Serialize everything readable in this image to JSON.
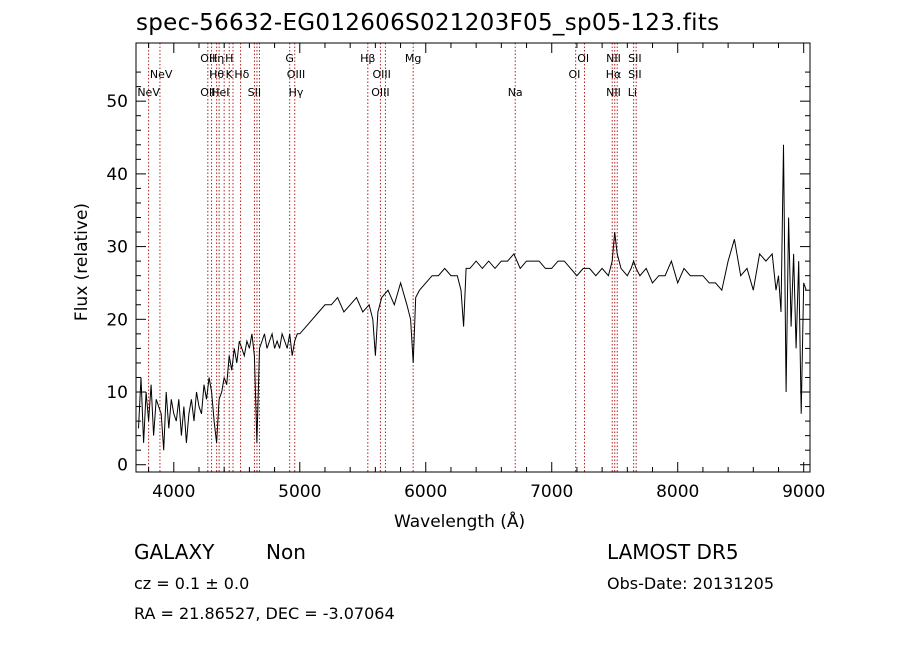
{
  "chart_data": {
    "type": "line",
    "title": "spec-56632-EG012606S021203F05_sp05-123.fits",
    "xlabel": "Wavelength (Å)",
    "ylabel": "Flux (relative)",
    "xlim": [
      3700,
      9050
    ],
    "ylim": [
      -1,
      58
    ],
    "xticks": [
      4000,
      5000,
      6000,
      7000,
      8000,
      9000
    ],
    "yticks": [
      0,
      10,
      20,
      30,
      40,
      50
    ],
    "grid": false,
    "line_color": "#000000",
    "marker_color": "#b22222",
    "series": [
      {
        "x": [
          3720,
          3740,
          3760,
          3780,
          3800,
          3820,
          3840,
          3860,
          3880,
          3900,
          3920,
          3940,
          3960,
          3980,
          4000,
          4020,
          4040,
          4060,
          4080,
          4100,
          4120,
          4140,
          4160,
          4180,
          4200,
          4220,
          4240,
          4260,
          4280,
          4300,
          4320,
          4340,
          4360,
          4380,
          4400,
          4420,
          4440,
          4460,
          4480,
          4500,
          4520,
          4540,
          4560,
          4580,
          4600,
          4620,
          4640,
          4660,
          4680,
          4700,
          4720,
          4740,
          4760,
          4780,
          4800,
          4820,
          4840,
          4860,
          4880,
          4900,
          4920,
          4940,
          4960,
          4980,
          5000,
          5050,
          5100,
          5150,
          5200,
          5250,
          5300,
          5350,
          5400,
          5450,
          5500,
          5550,
          5580,
          5600,
          5620,
          5650,
          5700,
          5750,
          5800,
          5850,
          5880,
          5900,
          5920,
          5950,
          6000,
          6050,
          6100,
          6150,
          6200,
          6250,
          6280,
          6300,
          6320,
          6350,
          6400,
          6450,
          6500,
          6550,
          6600,
          6650,
          6700,
          6750,
          6800,
          6850,
          6900,
          6950,
          7000,
          7050,
          7100,
          7150,
          7200,
          7250,
          7300,
          7350,
          7400,
          7450,
          7480,
          7500,
          7520,
          7550,
          7600,
          7630,
          7650,
          7670,
          7700,
          7750,
          7800,
          7850,
          7900,
          7950,
          8000,
          8050,
          8100,
          8150,
          8200,
          8250,
          8300,
          8350,
          8400,
          8450,
          8500,
          8550,
          8600,
          8650,
          8700,
          8750,
          8780,
          8800,
          8820,
          8840,
          8860,
          8880,
          8900,
          8920,
          8940,
          8960,
          8980,
          9000,
          9020
        ],
        "y": [
          5,
          12,
          3,
          10,
          6,
          11,
          4,
          9,
          8,
          7,
          2,
          10,
          5,
          9,
          7,
          6,
          9,
          4,
          8,
          3,
          7,
          9,
          6,
          10,
          8,
          7,
          11,
          9,
          12,
          10,
          6,
          3,
          9,
          10,
          12,
          11,
          15,
          13,
          16,
          14,
          17,
          16,
          15,
          17,
          16,
          18,
          15,
          3,
          16,
          17,
          18,
          16,
          17,
          18,
          16,
          17,
          16,
          18,
          17,
          16,
          18,
          15,
          17,
          18,
          18,
          19,
          20,
          21,
          22,
          22,
          23,
          21,
          22,
          23,
          21,
          22,
          20,
          15,
          21,
          23,
          24,
          22,
          25,
          22,
          20,
          14,
          23,
          24,
          25,
          26,
          26,
          27,
          26,
          26,
          24,
          19,
          27,
          27,
          28,
          27,
          28,
          27,
          28,
          28,
          29,
          27,
          28,
          28,
          28,
          27,
          27,
          28,
          28,
          27,
          26,
          27,
          27,
          26,
          27,
          26,
          28,
          32,
          29,
          27,
          26,
          27,
          28,
          27,
          26,
          27,
          25,
          26,
          26,
          28,
          25,
          27,
          26,
          26,
          26,
          25,
          25,
          24,
          28,
          31,
          26,
          27,
          24,
          29,
          28,
          29,
          24,
          26,
          21,
          44,
          10,
          34,
          19,
          29,
          16,
          28,
          7,
          25,
          24
        ]
      }
    ]
  },
  "markers": [
    {
      "x": 3800,
      "label": "NeV",
      "row": 3
    },
    {
      "x": 3900,
      "label": "NeV",
      "row": 2
    },
    {
      "x": 4270,
      "label": "OII",
      "row": 1
    },
    {
      "x": 4270,
      "label": "OII",
      "row": 3
    },
    {
      "x": 4340,
      "label": "Hη",
      "row": 1
    },
    {
      "x": 4340,
      "label": "Hθ",
      "row": 2
    },
    {
      "x": 4370,
      "label": "HeI",
      "row": 3
    },
    {
      "x": 4440,
      "label": "H",
      "row": 1
    },
    {
      "x": 4440,
      "label": "K",
      "row": 2
    },
    {
      "x": 4540,
      "label": "Hδ",
      "row": 2
    },
    {
      "x": 4640,
      "label": "SII",
      "row": 3
    },
    {
      "x": 4920,
      "label": "G",
      "row": 1
    },
    {
      "x": 4970,
      "label": "OIII",
      "row": 2
    },
    {
      "x": 4970,
      "label": "Hγ",
      "row": 3
    },
    {
      "x": 5540,
      "label": "Hβ",
      "row": 1
    },
    {
      "x": 5650,
      "label": "OIII",
      "row": 2
    },
    {
      "x": 5640,
      "label": "OIII",
      "row": 3
    },
    {
      "x": 5900,
      "label": "Mg",
      "row": 1
    },
    {
      "x": 6710,
      "label": "Na",
      "row": 3
    },
    {
      "x": 7250,
      "label": "OI",
      "row": 1
    },
    {
      "x": 7180,
      "label": "OI",
      "row": 2
    },
    {
      "x": 7490,
      "label": "NII",
      "row": 1
    },
    {
      "x": 7490,
      "label": "Hα",
      "row": 2
    },
    {
      "x": 7490,
      "label": "NII",
      "row": 3
    },
    {
      "x": 7660,
      "label": "SII",
      "row": 1
    },
    {
      "x": 7660,
      "label": "SII",
      "row": 2
    },
    {
      "x": 7640,
      "label": "Li",
      "row": 3
    }
  ],
  "marker_lines": [
    3800,
    3890,
    4270,
    4300,
    4340,
    4360,
    4400,
    4440,
    4470,
    4530,
    4640,
    4660,
    4680,
    4920,
    4960,
    5540,
    5640,
    5680,
    5900,
    6710,
    7190,
    7260,
    7480,
    7500,
    7520,
    7650,
    7670
  ],
  "info": {
    "class": "GALAXY",
    "subclass": "Non",
    "survey": "LAMOST DR5",
    "cz": "cz = 0.1 ± 0.0",
    "obs_date": "Obs-Date: 20131205",
    "coords": "RA =  21.86527, DEC =  -3.07064"
  }
}
